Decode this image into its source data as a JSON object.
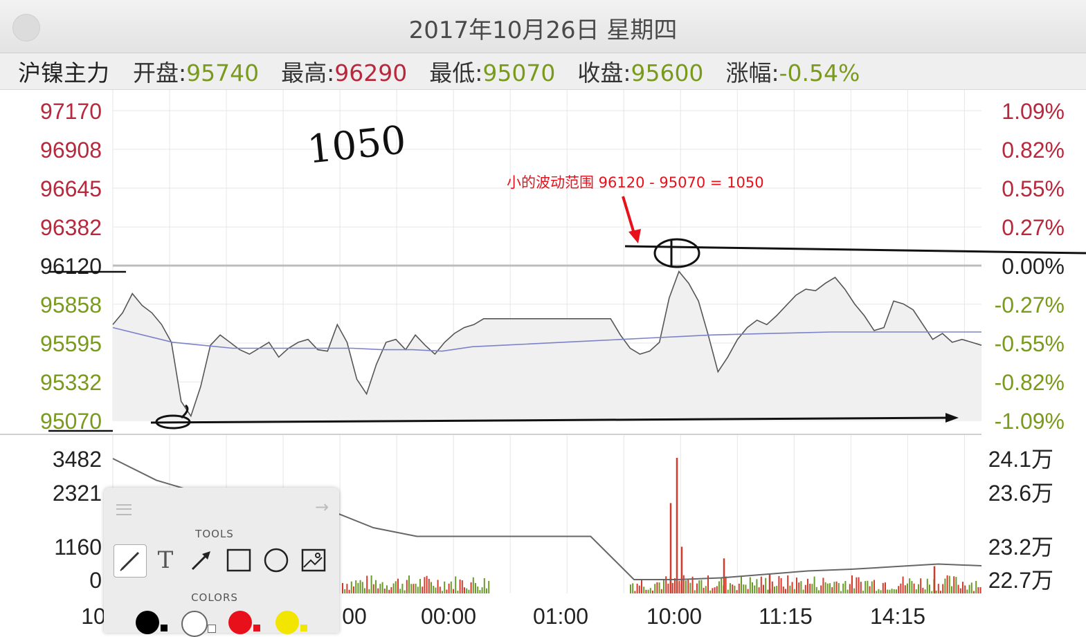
{
  "window": {
    "title": "2017年10月26日 星期四"
  },
  "info": {
    "symbol": "沪镍主力",
    "open_label": "开盘:",
    "open_value": "95740",
    "high_label": "最高:",
    "high_value": "96290",
    "low_label": "最低:",
    "low_value": "95070",
    "close_label": "收盘:",
    "close_value": "95600",
    "change_label": "涨幅:",
    "change_value": "-0.54%"
  },
  "colors": {
    "up": "#b8283c",
    "down": "#7a9a1c",
    "base": "#222222",
    "price_line": "#555555",
    "avg_line": "#7b82c8",
    "volume_up": "#d23a2a",
    "volume_down": "#6a9a2a",
    "annotation": "#e8101a"
  },
  "annotations": {
    "handwritten": "1050",
    "note": "小的波动范围 96120 - 95070 = 1050"
  },
  "chart_data": {
    "type": "line",
    "price": {
      "y_ticks": [
        "97170",
        "96908",
        "96645",
        "96382",
        "96120",
        "95858",
        "95595",
        "95332",
        "95070"
      ],
      "pct_ticks": [
        "1.09%",
        "0.82%",
        "0.55%",
        "0.27%",
        "0.00%",
        "-0.27%",
        "-0.55%",
        "-0.82%",
        "-1.09%"
      ],
      "ylim": [
        95070,
        97170
      ],
      "base": 96120,
      "series": [
        {
          "values": [
            95720,
            95800,
            95930,
            95850,
            95800,
            95720,
            95600,
            95200,
            95100,
            95300,
            95580,
            95650,
            95600,
            95550,
            95520,
            95560,
            95600,
            95500,
            95560,
            95600,
            95620,
            95550,
            95540,
            95720,
            95600,
            95350,
            95250,
            95450,
            95600,
            95620,
            95550,
            95650,
            95580,
            95520,
            95600,
            95660,
            95700,
            95720,
            95760,
            95760,
            95760,
            95760,
            95760,
            95760,
            95760,
            95760,
            95760,
            95760,
            95760,
            95760,
            95760,
            95760,
            95650,
            95560,
            95520,
            95540,
            95600,
            95900,
            96080,
            96000,
            95880,
            95650,
            95400,
            95500,
            95620,
            95700,
            95750,
            95720,
            95780,
            95850,
            95920,
            95960,
            95950,
            96000,
            96040,
            95960,
            95860,
            95780,
            95680,
            95700,
            95880,
            95860,
            95820,
            95720,
            95620,
            95660,
            95600,
            95620,
            95600,
            95580
          ]
        },
        {
          "values": [
            95700,
            95650,
            95600,
            95580,
            95560,
            95560,
            95560,
            95560,
            95560,
            95550,
            95550,
            95540,
            95570,
            95580,
            95590,
            95600,
            95610,
            95620,
            95630,
            95640,
            95650,
            95655,
            95660,
            95665,
            95670,
            95670,
            95670,
            95670,
            95670,
            95670
          ]
        }
      ]
    },
    "volume": {
      "y_ticks": [
        "3482",
        "2321",
        "1160",
        "0"
      ],
      "oi_ticks": [
        "24.1万",
        "23.6万",
        "23.2万",
        "22.7万"
      ],
      "ylim": [
        0,
        3482
      ],
      "peak_values": [
        3482,
        2321,
        1200,
        900,
        700,
        500
      ],
      "open_interest": [
        241000,
        238500,
        237000,
        236000,
        235500,
        235000,
        233000,
        232000,
        232000,
        232000,
        232000,
        232000,
        227000,
        227000,
        227200,
        227600,
        228000,
        228200,
        228500,
        228800,
        228600
      ]
    },
    "x_ticks": [
      "10",
      "00",
      "00:00",
      "01:00",
      "10:00",
      "11:15",
      "14:15"
    ]
  },
  "tools_panel": {
    "tools_label": "TOOLS",
    "colors_label": "COLORS",
    "text_tool_glyph": "T",
    "swatches": [
      "#000000",
      "#ffffff",
      "#e8101a",
      "#f2e600"
    ]
  }
}
